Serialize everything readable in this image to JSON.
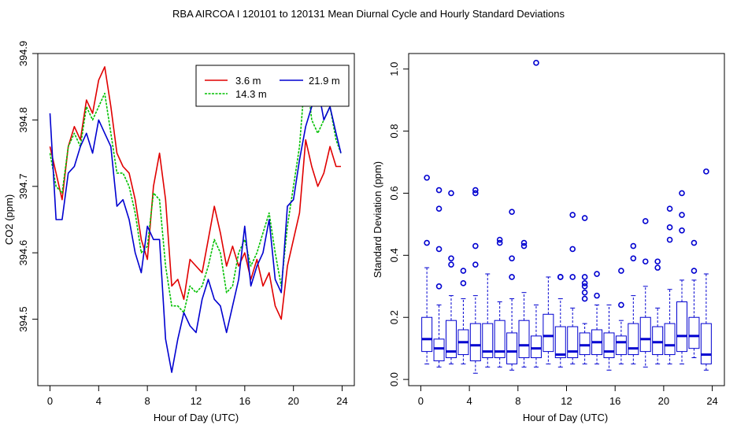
{
  "figure_title": "RBA   AIRCOA I   120101 to 120131   Mean Diurnal Cycle and Hourly Standard Deviations",
  "chart_data": [
    {
      "type": "line",
      "xlabel": "Hour of Day (UTC)",
      "ylabel": "CO2 (ppm)",
      "xlim": [
        -1,
        25
      ],
      "ylim": [
        394.4,
        394.9
      ],
      "xticks": [
        "0",
        "4",
        "8",
        "12",
        "16",
        "20",
        "24"
      ],
      "yticks": [
        "394.5",
        "394.6",
        "394.7",
        "394.8",
        "394.9"
      ],
      "legend_position": "top-right",
      "series": [
        {
          "name": "3.6 m",
          "color": "#e00000",
          "x": [
            0,
            0.5,
            1,
            1.5,
            2,
            2.5,
            3,
            3.5,
            4,
            4.5,
            5,
            5.5,
            6,
            6.5,
            7,
            7.5,
            8,
            8.5,
            9,
            9.5,
            10,
            10.5,
            11,
            11.5,
            12,
            12.5,
            13,
            13.5,
            14,
            14.5,
            15,
            15.5,
            16,
            16.5,
            17,
            17.5,
            18,
            18.5,
            19,
            19.5,
            20,
            20.5,
            21,
            21.5,
            22,
            22.5,
            23,
            23.5,
            23.9
          ],
          "values": [
            394.76,
            394.72,
            394.68,
            394.76,
            394.79,
            394.77,
            394.83,
            394.81,
            394.86,
            394.88,
            394.82,
            394.75,
            394.73,
            394.72,
            394.68,
            394.62,
            394.59,
            394.7,
            394.75,
            394.68,
            394.55,
            394.56,
            394.53,
            394.59,
            394.58,
            394.57,
            394.62,
            394.67,
            394.63,
            394.58,
            394.61,
            394.58,
            394.6,
            394.56,
            394.59,
            394.55,
            394.57,
            394.52,
            394.5,
            394.58,
            394.62,
            394.66,
            394.77,
            394.73,
            394.7,
            394.72,
            394.76,
            394.73,
            394.73
          ]
        },
        {
          "name": "14.3 m",
          "color": "#00c000",
          "x": [
            0,
            0.5,
            1,
            1.5,
            2,
            2.5,
            3,
            3.5,
            4,
            4.5,
            5,
            5.5,
            6,
            6.5,
            7,
            7.5,
            8,
            8.5,
            9,
            9.5,
            10,
            10.5,
            11,
            11.5,
            12,
            12.5,
            13,
            13.5,
            14,
            14.5,
            15,
            15.5,
            16,
            16.5,
            17,
            17.5,
            18,
            18.5,
            19,
            19.5,
            20,
            20.5,
            21,
            21.5,
            22,
            22.5,
            23,
            23.5,
            23.9
          ],
          "values": [
            394.75,
            394.7,
            394.69,
            394.76,
            394.78,
            394.76,
            394.82,
            394.8,
            394.82,
            394.84,
            394.78,
            394.72,
            394.72,
            394.7,
            394.66,
            394.6,
            394.61,
            394.69,
            394.68,
            394.58,
            394.52,
            394.52,
            394.51,
            394.55,
            394.54,
            394.55,
            394.58,
            394.62,
            394.6,
            394.54,
            394.55,
            394.6,
            394.62,
            394.58,
            394.6,
            394.63,
            394.66,
            394.6,
            394.55,
            394.64,
            394.7,
            394.76,
            394.88,
            394.8,
            394.78,
            394.8,
            394.82,
            394.77,
            394.75
          ]
        },
        {
          "name": "21.9 m",
          "color": "#0000d0",
          "x": [
            0,
            0.5,
            1,
            1.5,
            2,
            2.5,
            3,
            3.5,
            4,
            4.5,
            5,
            5.5,
            6,
            6.5,
            7,
            7.5,
            8,
            8.5,
            9,
            9.5,
            10,
            10.5,
            11,
            11.5,
            12,
            12.5,
            13,
            13.5,
            14,
            14.5,
            15,
            15.5,
            16,
            16.5,
            17,
            17.5,
            18,
            18.5,
            19,
            19.5,
            20,
            20.5,
            21,
            21.5,
            22,
            22.5,
            23,
            23.5,
            23.9
          ],
          "values": [
            394.81,
            394.65,
            394.65,
            394.72,
            394.73,
            394.76,
            394.78,
            394.75,
            394.8,
            394.78,
            394.76,
            394.67,
            394.68,
            394.65,
            394.6,
            394.57,
            394.64,
            394.62,
            394.62,
            394.47,
            394.42,
            394.47,
            394.51,
            394.49,
            394.48,
            394.53,
            394.56,
            394.53,
            394.52,
            394.48,
            394.52,
            394.56,
            394.64,
            394.55,
            394.58,
            394.6,
            394.65,
            394.56,
            394.54,
            394.67,
            394.68,
            394.74,
            394.79,
            394.82,
            394.85,
            394.8,
            394.82,
            394.78,
            394.75
          ]
        }
      ]
    },
    {
      "type": "box",
      "xlabel": "Hour of Day (UTC)",
      "ylabel": "Standard Deviation (ppm)",
      "xlim": [
        -1,
        25
      ],
      "ylim": [
        -0.02,
        1.05
      ],
      "xticks": [
        "0",
        "4",
        "8",
        "12",
        "16",
        "20",
        "24"
      ],
      "yticks": [
        "0.0",
        "0.2",
        "0.4",
        "0.6",
        "0.8",
        "1.0"
      ],
      "color": "#0000d0",
      "boxes": [
        {
          "x": 0.5,
          "q1": 0.09,
          "median": 0.13,
          "q3": 0.2,
          "wlo": 0.05,
          "whi": 0.36,
          "outliers": [
            0.44,
            0.65
          ]
        },
        {
          "x": 1.5,
          "q1": 0.06,
          "median": 0.1,
          "q3": 0.13,
          "wlo": 0.04,
          "whi": 0.24,
          "outliers": [
            0.3,
            0.42,
            0.55,
            0.61
          ]
        },
        {
          "x": 2.5,
          "q1": 0.07,
          "median": 0.09,
          "q3": 0.19,
          "wlo": 0.05,
          "whi": 0.27,
          "outliers": [
            0.37,
            0.39,
            0.6
          ]
        },
        {
          "x": 3.5,
          "q1": 0.08,
          "median": 0.12,
          "q3": 0.16,
          "wlo": 0.05,
          "whi": 0.26,
          "outliers": [
            0.31,
            0.35
          ]
        },
        {
          "x": 4.5,
          "q1": 0.06,
          "median": 0.11,
          "q3": 0.18,
          "wlo": 0.02,
          "whi": 0.27,
          "outliers": [
            0.37,
            0.43,
            0.6,
            0.61
          ]
        },
        {
          "x": 5.5,
          "q1": 0.07,
          "median": 0.09,
          "q3": 0.18,
          "wlo": 0.04,
          "whi": 0.34,
          "outliers": []
        },
        {
          "x": 6.5,
          "q1": 0.07,
          "median": 0.09,
          "q3": 0.19,
          "wlo": 0.04,
          "whi": 0.25,
          "outliers": [
            0.44,
            0.45
          ]
        },
        {
          "x": 7.5,
          "q1": 0.05,
          "median": 0.09,
          "q3": 0.15,
          "wlo": 0.03,
          "whi": 0.26,
          "outliers": [
            0.33,
            0.39,
            0.54
          ]
        },
        {
          "x": 8.5,
          "q1": 0.07,
          "median": 0.11,
          "q3": 0.19,
          "wlo": 0.04,
          "whi": 0.28,
          "outliers": [
            0.43,
            0.44
          ]
        },
        {
          "x": 9.5,
          "q1": 0.07,
          "median": 0.1,
          "q3": 0.14,
          "wlo": 0.04,
          "whi": 0.24,
          "outliers": [
            1.02
          ]
        },
        {
          "x": 10.5,
          "q1": 0.09,
          "median": 0.14,
          "q3": 0.21,
          "wlo": 0.05,
          "whi": 0.33,
          "outliers": []
        },
        {
          "x": 11.5,
          "q1": 0.07,
          "median": 0.08,
          "q3": 0.17,
          "wlo": 0.04,
          "whi": 0.26,
          "outliers": [
            0.33,
            0.33
          ]
        },
        {
          "x": 12.5,
          "q1": 0.07,
          "median": 0.09,
          "q3": 0.17,
          "wlo": 0.05,
          "whi": 0.23,
          "outliers": [
            0.33,
            0.42,
            0.53
          ]
        },
        {
          "x": 13.5,
          "q1": 0.08,
          "median": 0.11,
          "q3": 0.15,
          "wlo": 0.05,
          "whi": 0.18,
          "outliers": [
            0.26,
            0.28,
            0.3,
            0.31,
            0.33,
            0.52
          ]
        },
        {
          "x": 14.5,
          "q1": 0.08,
          "median": 0.12,
          "q3": 0.16,
          "wlo": 0.05,
          "whi": 0.24,
          "outliers": [
            0.27,
            0.34
          ]
        },
        {
          "x": 15.5,
          "q1": 0.07,
          "median": 0.09,
          "q3": 0.15,
          "wlo": 0.03,
          "whi": 0.24,
          "outliers": []
        },
        {
          "x": 16.5,
          "q1": 0.08,
          "median": 0.12,
          "q3": 0.14,
          "wlo": 0.05,
          "whi": 0.19,
          "outliers": [
            0.24,
            0.35
          ]
        },
        {
          "x": 17.5,
          "q1": 0.08,
          "median": 0.1,
          "q3": 0.18,
          "wlo": 0.05,
          "whi": 0.27,
          "outliers": [
            0.39,
            0.43
          ]
        },
        {
          "x": 18.5,
          "q1": 0.09,
          "median": 0.13,
          "q3": 0.2,
          "wlo": 0.04,
          "whi": 0.3,
          "outliers": [
            0.38,
            0.51
          ]
        },
        {
          "x": 19.5,
          "q1": 0.08,
          "median": 0.12,
          "q3": 0.17,
          "wlo": 0.05,
          "whi": 0.23,
          "outliers": [
            0.36,
            0.38
          ]
        },
        {
          "x": 20.5,
          "q1": 0.08,
          "median": 0.11,
          "q3": 0.18,
          "wlo": 0.05,
          "whi": 0.29,
          "outliers": [
            0.45,
            0.49,
            0.55
          ]
        },
        {
          "x": 21.5,
          "q1": 0.09,
          "median": 0.14,
          "q3": 0.25,
          "wlo": 0.05,
          "whi": 0.32,
          "outliers": [
            0.48,
            0.53,
            0.6
          ]
        },
        {
          "x": 22.5,
          "q1": 0.1,
          "median": 0.14,
          "q3": 0.2,
          "wlo": 0.07,
          "whi": 0.32,
          "outliers": [
            0.35,
            0.44
          ]
        },
        {
          "x": 23.5,
          "q1": 0.05,
          "median": 0.08,
          "q3": 0.18,
          "wlo": 0.03,
          "whi": 0.34,
          "outliers": [
            0.67
          ]
        }
      ]
    }
  ]
}
